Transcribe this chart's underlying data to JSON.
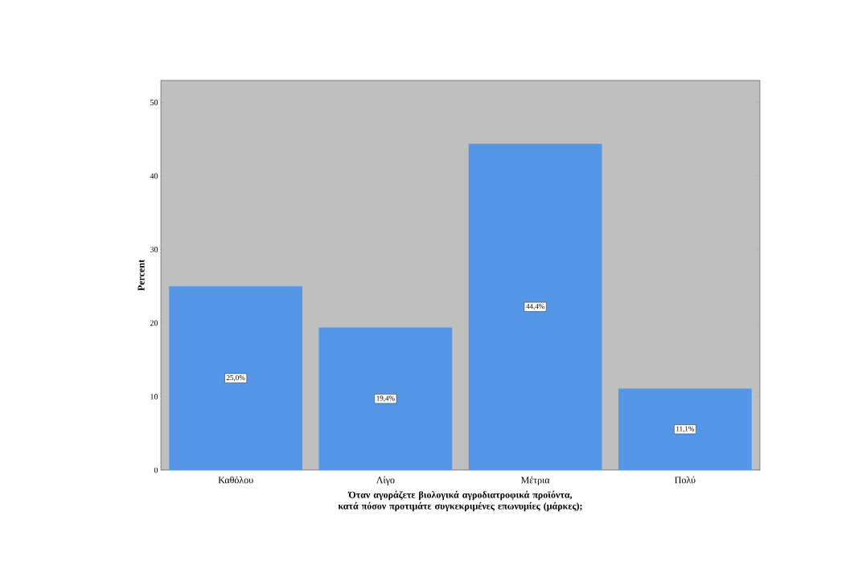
{
  "chart_data": {
    "type": "bar",
    "xlabel": "Όταν αγοράζετε βιολογικά αγροδιατροφικά προϊόντα, κατά πόσον προτιμάτε συγκεκριμένες επωνυμίες (μάρκες);",
    "ylabel": "Percent",
    "categories": [
      "Καθόλου",
      "Λίγο",
      "Μέτρια",
      "Πολύ"
    ],
    "values": [
      25.0,
      19.4,
      44.4,
      11.1
    ],
    "value_labels": [
      "25,0%",
      "19,4%",
      "44,4%",
      "11,1%"
    ],
    "color": "#5596e6",
    "ylim": [
      0,
      53
    ],
    "yticks": [
      0,
      10,
      20,
      30,
      40,
      50
    ]
  }
}
